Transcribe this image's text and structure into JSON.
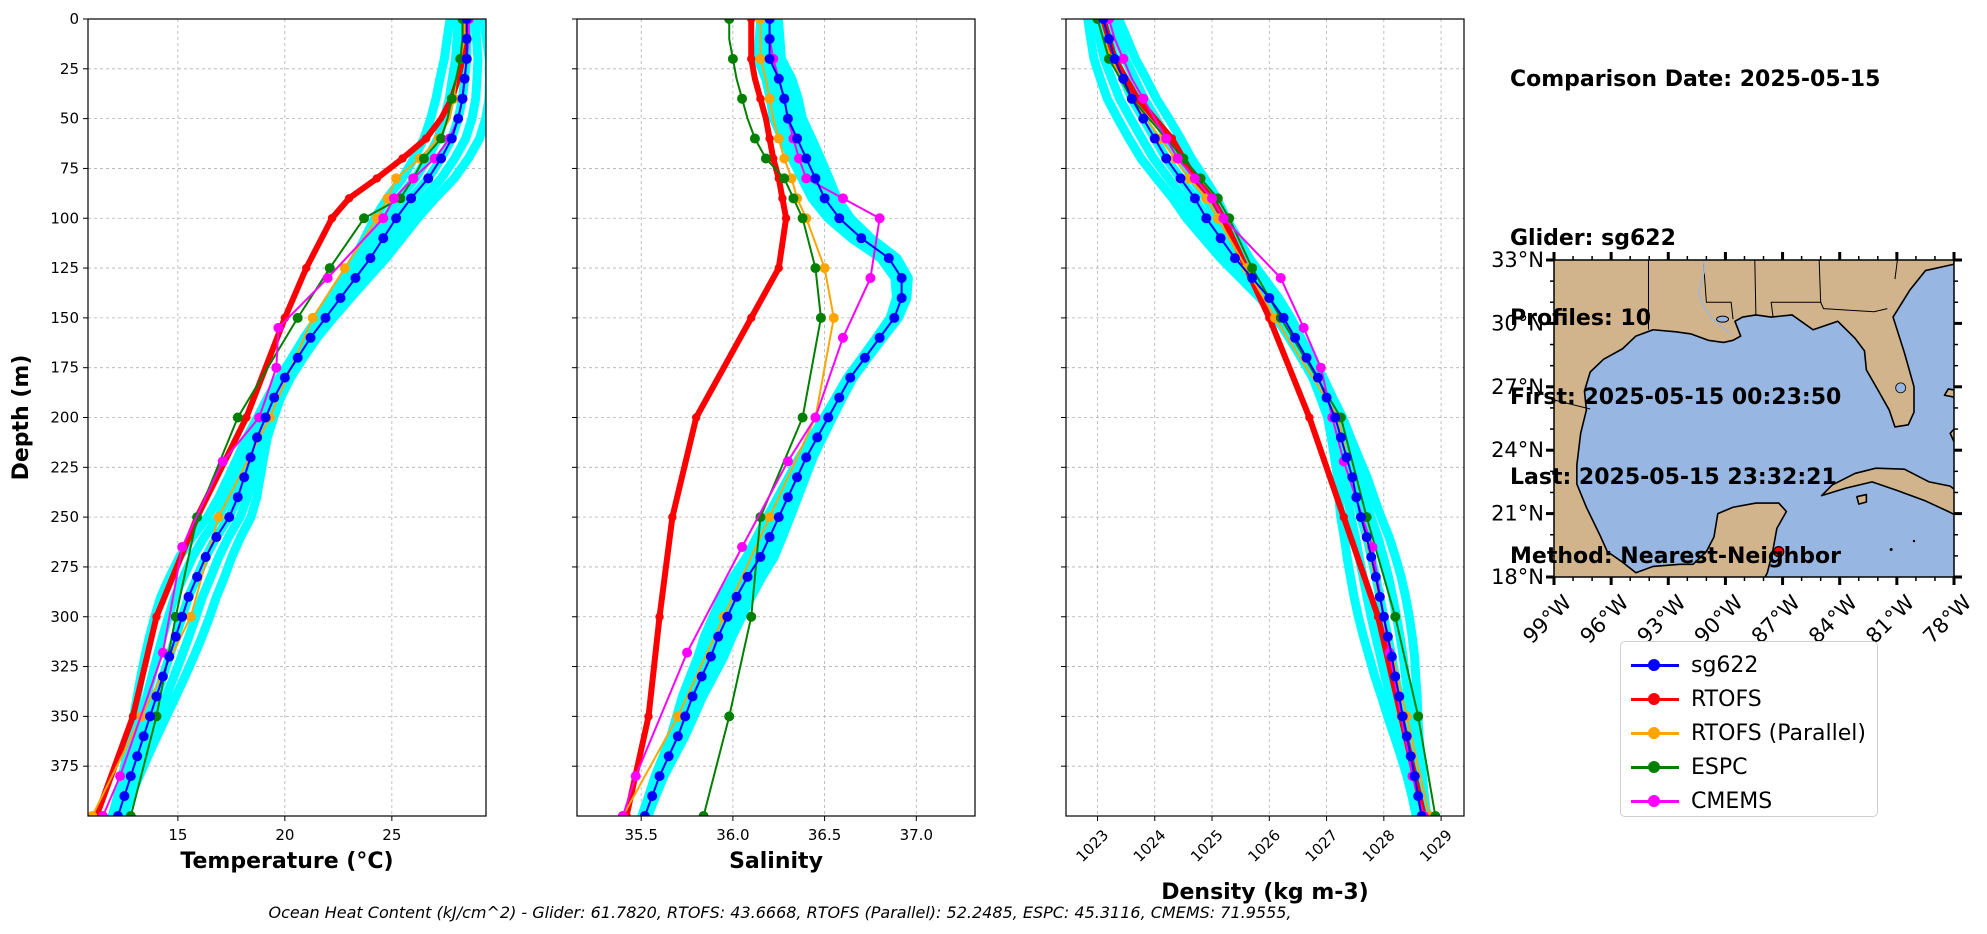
{
  "info": {
    "comparison_date": "Comparison Date: 2025-05-15",
    "glider": "Glider: sg622",
    "profiles": "Profiles: 10",
    "first": "First: 2025-05-15 00:23:50",
    "last": "Last: 2025-05-15 23:32:21",
    "method": "Method: Nearest-Neighbor"
  },
  "footer": "Ocean Heat Content (kJ/cm^2) - Glider: 61.7820,  RTOFS: 43.6668,  RTOFS (Parallel): 52.2485,  ESPC: 45.3116,  CMEMS: 71.9555,",
  "legend": [
    {
      "name": "sg622",
      "color": "#0000ff"
    },
    {
      "name": "RTOFS",
      "color": "#ff0000"
    },
    {
      "name": "RTOFS (Parallel)",
      "color": "#ffa500"
    },
    {
      "name": "ESPC",
      "color": "#008000"
    },
    {
      "name": "CMEMS",
      "color": "#ff00ff"
    }
  ],
  "colors": {
    "glider_raw": "#00ffff",
    "grid": "#b0b0b0",
    "land": "#d2b48c",
    "ocean": "#97b6e1"
  },
  "chart_data": [
    {
      "type": "line",
      "xlabel": "Temperature (°C)",
      "ylabel": "Depth (m)",
      "xlim": [
        10.8,
        29.4
      ],
      "ylim": [
        400,
        0
      ],
      "xticks": [
        15,
        20,
        25
      ],
      "yticks": [
        0,
        25,
        50,
        75,
        100,
        125,
        150,
        175,
        200,
        225,
        250,
        275,
        300,
        325,
        350,
        375
      ],
      "grid": true,
      "series": [
        {
          "name": "sg622",
          "depth": [
            0,
            10,
            20,
            30,
            40,
            50,
            60,
            70,
            80,
            90,
            100,
            110,
            120,
            130,
            140,
            150,
            160,
            170,
            180,
            190,
            200,
            210,
            220,
            230,
            240,
            250,
            260,
            270,
            280,
            290,
            300,
            310,
            320,
            330,
            340,
            350,
            360,
            370,
            380,
            390,
            400
          ],
          "values": [
            28.5,
            28.5,
            28.5,
            28.4,
            28.3,
            28.1,
            27.8,
            27.3,
            26.7,
            25.9,
            25.2,
            24.6,
            24.0,
            23.3,
            22.6,
            21.9,
            21.2,
            20.6,
            20.0,
            19.5,
            19.1,
            18.7,
            18.4,
            18.1,
            17.8,
            17.4,
            16.8,
            16.3,
            15.9,
            15.5,
            15.2,
            14.9,
            14.6,
            14.3,
            14.0,
            13.7,
            13.4,
            13.1,
            12.8,
            12.5,
            12.2
          ]
        },
        {
          "name": "RTOFS",
          "depth": [
            0,
            10,
            20,
            30,
            40,
            50,
            60,
            70,
            80,
            90,
            100,
            125,
            150,
            200,
            250,
            300,
            350,
            400
          ],
          "values": [
            28.5,
            28.4,
            28.3,
            28.1,
            27.8,
            27.3,
            26.6,
            25.5,
            24.3,
            23.0,
            22.2,
            21.0,
            20.0,
            18.2,
            15.9,
            14.0,
            12.9,
            11.2
          ]
        },
        {
          "name": "RTOFS (Parallel)",
          "depth": [
            0,
            10,
            20,
            30,
            40,
            50,
            60,
            70,
            80,
            90,
            100,
            125,
            150,
            200,
            250,
            300,
            350,
            400
          ],
          "values": [
            28.4,
            28.4,
            28.2,
            28.0,
            27.9,
            27.7,
            27.2,
            26.3,
            25.2,
            24.8,
            24.3,
            22.8,
            21.3,
            19.3,
            16.9,
            15.6,
            13.3,
            11.0
          ]
        },
        {
          "name": "ESPC",
          "depth": [
            0,
            10,
            20,
            30,
            40,
            50,
            60,
            70,
            80,
            90,
            100,
            125,
            150,
            200,
            250,
            300,
            350,
            400
          ],
          "values": [
            28.3,
            28.3,
            28.2,
            28.0,
            27.8,
            27.6,
            27.3,
            26.5,
            26.0,
            25.4,
            23.7,
            22.1,
            20.6,
            17.8,
            15.9,
            14.9,
            14.0,
            12.8
          ]
        },
        {
          "name": "CMEMS",
          "depth": [
            0,
            10,
            20,
            30,
            40,
            50,
            60,
            70,
            80,
            90,
            100,
            130,
            155,
            175,
            200,
            222,
            265,
            318,
            380,
            400
          ],
          "values": [
            28.6,
            28.6,
            28.5,
            28.4,
            28.3,
            28.1,
            27.7,
            27.0,
            26.0,
            25.1,
            24.6,
            22.0,
            19.7,
            19.6,
            18.8,
            17.1,
            15.2,
            14.3,
            12.3,
            11.5
          ]
        }
      ]
    },
    {
      "type": "line",
      "xlabel": "Salinity",
      "ylabel": "",
      "xlim": [
        35.15,
        37.32
      ],
      "ylim": [
        400,
        0
      ],
      "xticks": [
        35.5,
        36.0,
        36.5,
        37.0
      ],
      "grid": true,
      "series": [
        {
          "name": "sg622",
          "depth": [
            0,
            10,
            20,
            30,
            40,
            50,
            60,
            70,
            80,
            90,
            100,
            110,
            120,
            130,
            140,
            150,
            160,
            170,
            180,
            190,
            200,
            210,
            220,
            230,
            240,
            250,
            260,
            270,
            280,
            290,
            300,
            310,
            320,
            330,
            340,
            350,
            360,
            370,
            380,
            390,
            400
          ],
          "values": [
            36.2,
            36.2,
            36.2,
            36.25,
            36.28,
            36.3,
            36.35,
            36.4,
            36.45,
            36.5,
            36.58,
            36.7,
            36.85,
            36.92,
            36.92,
            36.88,
            36.8,
            36.72,
            36.64,
            36.58,
            36.52,
            36.46,
            36.4,
            36.35,
            36.3,
            36.25,
            36.2,
            36.15,
            36.08,
            36.02,
            35.97,
            35.92,
            35.88,
            35.83,
            35.78,
            35.74,
            35.7,
            35.65,
            35.6,
            35.56,
            35.52
          ]
        },
        {
          "name": "RTOFS",
          "depth": [
            0,
            10,
            20,
            30,
            40,
            50,
            60,
            70,
            80,
            90,
            100,
            125,
            150,
            200,
            250,
            300,
            350,
            400
          ],
          "values": [
            36.1,
            36.1,
            36.1,
            36.12,
            36.15,
            36.18,
            36.2,
            36.22,
            36.25,
            36.27,
            36.29,
            36.25,
            36.1,
            35.8,
            35.67,
            35.6,
            35.54,
            35.42
          ]
        },
        {
          "name": "RTOFS (Parallel)",
          "depth": [
            0,
            10,
            20,
            30,
            40,
            50,
            60,
            70,
            80,
            90,
            100,
            125,
            150,
            200,
            250,
            300,
            350,
            400
          ],
          "values": [
            36.15,
            36.15,
            36.15,
            36.18,
            36.2,
            36.22,
            36.25,
            36.28,
            36.32,
            36.35,
            36.4,
            36.5,
            36.55,
            36.45,
            36.2,
            35.95,
            35.7,
            35.4
          ]
        },
        {
          "name": "ESPC",
          "depth": [
            0,
            10,
            20,
            30,
            40,
            50,
            60,
            70,
            80,
            90,
            100,
            125,
            150,
            200,
            250,
            300,
            350,
            400
          ],
          "values": [
            35.98,
            35.98,
            36.0,
            36.02,
            36.05,
            36.08,
            36.12,
            36.18,
            36.28,
            36.33,
            36.38,
            36.45,
            36.48,
            36.38,
            36.15,
            36.1,
            35.98,
            35.84
          ]
        },
        {
          "name": "CMEMS",
          "depth": [
            0,
            10,
            20,
            30,
            40,
            50,
            60,
            70,
            80,
            90,
            100,
            130,
            160,
            200,
            222,
            265,
            318,
            380,
            400
          ],
          "values": [
            36.2,
            36.2,
            36.22,
            36.25,
            36.28,
            36.3,
            36.33,
            36.36,
            36.4,
            36.6,
            36.8,
            36.75,
            36.6,
            36.45,
            36.3,
            36.05,
            35.75,
            35.47,
            35.4
          ]
        }
      ]
    },
    {
      "type": "line",
      "xlabel": "Density (kg m-3)",
      "ylabel": "",
      "xlim": [
        1022.45,
        1029.4
      ],
      "ylim": [
        400,
        0
      ],
      "xticks": [
        1023,
        1024,
        1025,
        1026,
        1027,
        1028,
        1029
      ],
      "grid": true,
      "series": [
        {
          "name": "sg622",
          "depth": [
            0,
            10,
            20,
            30,
            40,
            50,
            60,
            70,
            80,
            90,
            100,
            110,
            120,
            130,
            140,
            150,
            160,
            170,
            180,
            190,
            200,
            210,
            220,
            230,
            240,
            250,
            260,
            270,
            280,
            290,
            300,
            310,
            320,
            330,
            340,
            350,
            360,
            370,
            380,
            390,
            400
          ],
          "values": [
            1023.1,
            1023.2,
            1023.3,
            1023.45,
            1023.6,
            1023.8,
            1024.0,
            1024.2,
            1024.45,
            1024.7,
            1024.9,
            1025.15,
            1025.4,
            1025.7,
            1026.0,
            1026.25,
            1026.45,
            1026.65,
            1026.85,
            1027.0,
            1027.15,
            1027.25,
            1027.35,
            1027.45,
            1027.52,
            1027.6,
            1027.7,
            1027.78,
            1027.86,
            1027.93,
            1028.0,
            1028.07,
            1028.14,
            1028.2,
            1028.27,
            1028.33,
            1028.4,
            1028.47,
            1028.54,
            1028.6,
            1028.66
          ]
        },
        {
          "name": "RTOFS",
          "depth": [
            0,
            10,
            20,
            30,
            40,
            50,
            60,
            70,
            80,
            90,
            100,
            125,
            150,
            200,
            250,
            300,
            350,
            400
          ],
          "values": [
            1023.1,
            1023.2,
            1023.3,
            1023.5,
            1023.7,
            1024.0,
            1024.3,
            1024.5,
            1024.7,
            1025.0,
            1025.2,
            1025.6,
            1026.0,
            1026.7,
            1027.3,
            1027.9,
            1028.3,
            1028.7
          ]
        },
        {
          "name": "RTOFS (Parallel)",
          "depth": [
            0,
            10,
            20,
            30,
            40,
            50,
            60,
            70,
            80,
            90,
            100,
            125,
            150,
            200,
            250,
            300,
            350,
            400
          ],
          "values": [
            1023.0,
            1023.1,
            1023.25,
            1023.4,
            1023.6,
            1023.85,
            1024.1,
            1024.35,
            1024.6,
            1024.9,
            1025.1,
            1025.6,
            1026.1,
            1027.2,
            1027.6,
            1028.0,
            1028.4,
            1028.8
          ]
        },
        {
          "name": "ESPC",
          "depth": [
            0,
            10,
            20,
            30,
            40,
            50,
            60,
            70,
            80,
            90,
            100,
            125,
            150,
            200,
            250,
            300,
            350,
            400
          ],
          "values": [
            1023.0,
            1023.1,
            1023.2,
            1023.4,
            1023.6,
            1023.9,
            1024.2,
            1024.5,
            1024.8,
            1025.1,
            1025.3,
            1025.7,
            1026.2,
            1027.25,
            1027.7,
            1028.2,
            1028.6,
            1028.9
          ]
        },
        {
          "name": "CMEMS",
          "depth": [
            0,
            10,
            20,
            30,
            40,
            50,
            60,
            70,
            80,
            90,
            100,
            130,
            155,
            175,
            200,
            222,
            265,
            318,
            380,
            400
          ],
          "values": [
            1023.2,
            1023.3,
            1023.45,
            1023.6,
            1023.8,
            1024.0,
            1024.2,
            1024.4,
            1024.7,
            1025.0,
            1025.2,
            1026.2,
            1026.6,
            1026.9,
            1027.1,
            1027.3,
            1027.8,
            1028.1,
            1028.5,
            1028.7
          ]
        }
      ]
    },
    {
      "type": "map",
      "lon_range": [
        -99,
        -78
      ],
      "lat_range": [
        18,
        33
      ],
      "lon_ticks": [
        "99°W",
        "96°W",
        "93°W",
        "90°W",
        "87°W",
        "84°W",
        "81°W",
        "78°W"
      ],
      "lat_ticks": [
        "33°N",
        "30°N",
        "27°N",
        "24°N",
        "21°N",
        "18°N"
      ],
      "glider_position": {
        "lon": -87.2,
        "lat": 19.2
      }
    }
  ]
}
